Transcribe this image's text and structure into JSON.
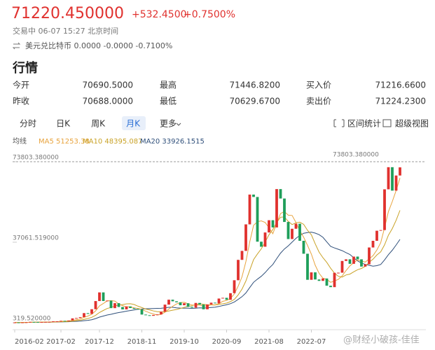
{
  "header": {
    "price": "71220.450000",
    "change": "+532.4500",
    "change_pct": "+0.7500%",
    "status": "交易中 06-07 15:27 北京时间",
    "pair": "美元兑比特币 0.0000 -0.0000 -0.7100%"
  },
  "section_title": "行情",
  "quote_table": {
    "rows": [
      [
        "今开",
        "70690.5000",
        "最高",
        "71446.8200",
        "买入价",
        "71216.6600"
      ],
      [
        "昨收",
        "70688.0000",
        "最低",
        "70629.6700",
        "卖出价",
        "71224.2300"
      ]
    ]
  },
  "tabs": [
    "分时",
    "日K",
    "周K",
    "月K",
    "更多"
  ],
  "tools": [
    "区间统计",
    "超级视图"
  ],
  "ma_legend": {
    "title": "均线",
    "items": [
      {
        "label": "MA5 51253.38",
        "color": "#e8a33d"
      },
      {
        "label": "MA10 48395.087",
        "color": "#c9a227"
      },
      {
        "label": "MA20 33926.1515",
        "color": "#2f4f7a"
      }
    ]
  },
  "watermark": "@财经小破孩-佳佳",
  "chart_data": {
    "type": "candlestick",
    "up_color": "#e0312e",
    "down_color": "#1f9e5a",
    "ylim": [
      319.52,
      73803.38
    ],
    "yticks": [
      {
        "value": 73803.38,
        "label": "73803.380000"
      },
      {
        "value": 37061.519,
        "label": "37061.519000"
      },
      {
        "value": 319.52,
        "label": "319.520000"
      }
    ],
    "max_marker": {
      "value": 73803.38,
      "label": "73803.380000"
    },
    "xticks": [
      {
        "value": 0,
        "label": "2016-02"
      },
      {
        "value": 12,
        "label": "2017-02"
      },
      {
        "value": 22,
        "label": "2017-12"
      },
      {
        "value": 33,
        "label": "2018-11"
      },
      {
        "value": 44,
        "label": "2019-10"
      },
      {
        "value": 55,
        "label": "2020-09"
      },
      {
        "value": 66,
        "label": "2021-08"
      },
      {
        "value": 77,
        "label": "2022-07"
      }
    ],
    "open": [
      370,
      437,
      416,
      448,
      531,
      673,
      624,
      575,
      609,
      701,
      742,
      963,
      970,
      1190,
      1080,
      1348,
      2300,
      2480,
      2875,
      4700,
      4340,
      6470,
      10200,
      14150,
      10220,
      10400,
      6970,
      9240,
      7490,
      6400,
      7730,
      7030,
      6630,
      6370,
      4040,
      3740,
      3460,
      3850,
      4100,
      5350,
      8570,
      10820,
      10090,
      9630,
      8290,
      9200,
      7570,
      7190,
      9350,
      8600,
      6440,
      8660,
      9460,
      9140,
      11350,
      11680,
      10780,
      13800,
      19700,
      29000,
      33100,
      45200,
      58800,
      57700,
      37300,
      35000,
      41500,
      47100,
      43800,
      61300,
      57000,
      46300,
      38500,
      43200,
      45500,
      37700,
      31800,
      19900,
      23300,
      20050,
      19400,
      20500,
      17200,
      16550,
      23100,
      23150,
      28500,
      29250,
      27200,
      30500,
      29250,
      25950,
      26970,
      34650,
      37700,
      42300,
      42600,
      61200,
      71300,
      60600,
      67500
    ],
    "close": [
      437,
      416,
      448,
      531,
      673,
      624,
      575,
      609,
      701,
      742,
      963,
      970,
      1190,
      1080,
      1348,
      2300,
      2480,
      2875,
      4700,
      4340,
      6470,
      10200,
      14150,
      10220,
      10400,
      6970,
      9240,
      7490,
      6400,
      7730,
      7030,
      6630,
      6370,
      4040,
      3740,
      3460,
      3850,
      4100,
      5350,
      8570,
      10820,
      10090,
      9630,
      8290,
      9200,
      7570,
      7190,
      9350,
      8600,
      6440,
      8660,
      9460,
      9140,
      11350,
      11680,
      10780,
      13800,
      19700,
      29000,
      33100,
      45200,
      58800,
      57700,
      37300,
      35000,
      41500,
      47100,
      43800,
      61300,
      57000,
      46300,
      38500,
      43200,
      45500,
      37700,
      31800,
      19900,
      23300,
      20050,
      19400,
      20500,
      17200,
      16550,
      23100,
      23150,
      28500,
      29250,
      27200,
      30500,
      29250,
      25950,
      26970,
      34650,
      37700,
      42300,
      42600,
      61200,
      71300,
      60600,
      67500,
      71220.45
    ]
  }
}
